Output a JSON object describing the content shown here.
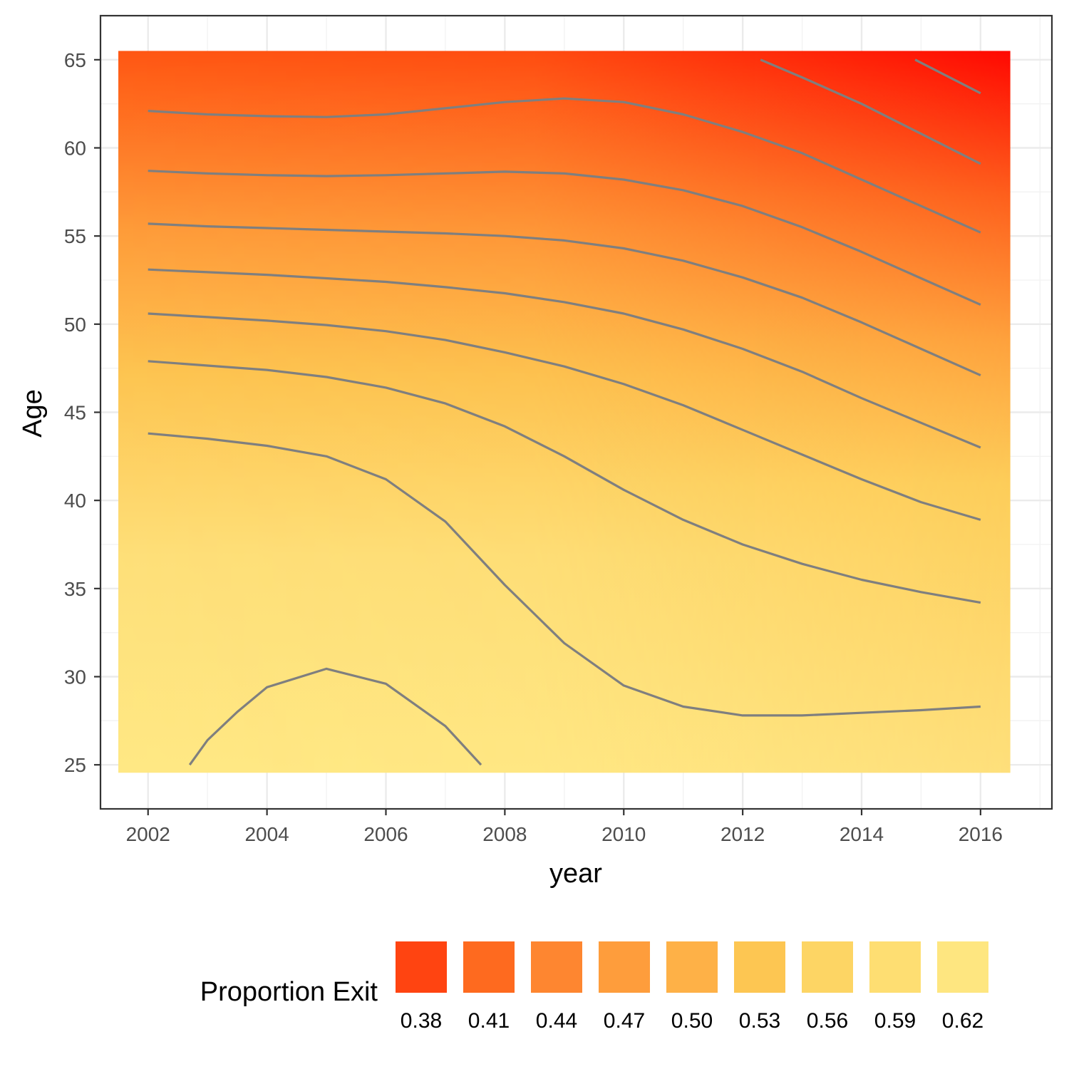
{
  "chart_data": {
    "type": "heatmap",
    "title": "",
    "xlabel": "year",
    "ylabel": "Age",
    "xlim": [
      2001.2,
      2017.2
    ],
    "ylim": [
      22.5,
      67.5
    ],
    "x_ticks": [
      2002,
      2004,
      2006,
      2008,
      2010,
      2012,
      2014,
      2016
    ],
    "y_ticks": [
      25,
      30,
      35,
      40,
      45,
      50,
      55,
      60,
      65
    ],
    "x_tick_labels": [
      "2002",
      "2004",
      "2006",
      "2008",
      "2010",
      "2012",
      "2014",
      "2016"
    ],
    "y_tick_labels": [
      "25",
      "30",
      "35",
      "40",
      "45",
      "50",
      "55",
      "60",
      "65"
    ],
    "grid": true,
    "heatmap_extent": {
      "x": [
        2001.5,
        2016.5
      ],
      "y": [
        24.55,
        65.5
      ]
    },
    "color_scale": {
      "low_color": "#FFE985",
      "high_color": "#FF0000"
    },
    "corner_values": {
      "top_left": 0.4,
      "top_right": 0.36,
      "bottom_left": 0.61,
      "bottom_right": 0.58
    },
    "legend": {
      "title": "Proportion Exit",
      "position": "bottom",
      "entries": [
        {
          "label": "0.38",
          "color": "#FF4411"
        },
        {
          "label": "0.41",
          "color": "#FE6A1F"
        },
        {
          "label": "0.44",
          "color": "#FE8630"
        },
        {
          "label": "0.47",
          "color": "#FE9D3C"
        },
        {
          "label": "0.50",
          "color": "#FEB147"
        },
        {
          "label": "0.53",
          "color": "#FDC652"
        },
        {
          "label": "0.56",
          "color": "#FDD564"
        },
        {
          "label": "0.59",
          "color": "#FEDE72"
        },
        {
          "label": "0.62",
          "color": "#FEE680"
        }
      ]
    },
    "contour_color": "#7f7f7f",
    "contours": [
      {
        "x": [
          2002.7,
          2003.0,
          2003.5,
          2004.0,
          2005.0,
          2006.0,
          2007.0,
          2007.6
        ],
        "y": [
          25.0,
          26.4,
          28.0,
          29.4,
          30.45,
          29.6,
          27.2,
          25.0
        ]
      },
      {
        "x": [
          2002,
          2003,
          2004,
          2005,
          2006,
          2007,
          2008,
          2009,
          2010,
          2011,
          2012,
          2013,
          2014,
          2015,
          2016
        ],
        "y": [
          43.8,
          43.5,
          43.1,
          42.5,
          41.2,
          38.8,
          35.2,
          31.9,
          29.5,
          28.3,
          27.8,
          27.8,
          27.95,
          28.1,
          28.3
        ]
      },
      {
        "x": [
          2002,
          2003,
          2004,
          2005,
          2006,
          2007,
          2008,
          2009,
          2010,
          2011,
          2012,
          2013,
          2014,
          2015,
          2016
        ],
        "y": [
          47.9,
          47.65,
          47.4,
          47.0,
          46.4,
          45.5,
          44.2,
          42.5,
          40.6,
          38.9,
          37.5,
          36.4,
          35.5,
          34.8,
          34.2
        ]
      },
      {
        "x": [
          2002,
          2003,
          2004,
          2005,
          2006,
          2007,
          2008,
          2009,
          2010,
          2011,
          2012,
          2013,
          2014,
          2015,
          2016
        ],
        "y": [
          50.6,
          50.4,
          50.2,
          49.95,
          49.6,
          49.1,
          48.4,
          47.6,
          46.6,
          45.4,
          44.0,
          42.6,
          41.2,
          39.9,
          38.9
        ]
      },
      {
        "x": [
          2002,
          2003,
          2004,
          2005,
          2006,
          2007,
          2008,
          2009,
          2010,
          2011,
          2012,
          2013,
          2014,
          2015,
          2016
        ],
        "y": [
          53.1,
          52.95,
          52.8,
          52.6,
          52.4,
          52.1,
          51.75,
          51.25,
          50.6,
          49.7,
          48.6,
          47.3,
          45.8,
          44.4,
          43.0
        ]
      },
      {
        "x": [
          2002,
          2003,
          2004,
          2005,
          2006,
          2007,
          2008,
          2009,
          2010,
          2011,
          2012,
          2013,
          2014,
          2015,
          2016
        ],
        "y": [
          55.7,
          55.55,
          55.45,
          55.35,
          55.25,
          55.15,
          55.0,
          54.75,
          54.3,
          53.6,
          52.65,
          51.5,
          50.1,
          48.6,
          47.1
        ]
      },
      {
        "x": [
          2002,
          2003,
          2004,
          2005,
          2006,
          2007,
          2008,
          2009,
          2010,
          2011,
          2012,
          2013,
          2014,
          2015,
          2016
        ],
        "y": [
          58.7,
          58.55,
          58.45,
          58.4,
          58.45,
          58.55,
          58.65,
          58.55,
          58.2,
          57.6,
          56.7,
          55.5,
          54.1,
          52.6,
          51.1
        ]
      },
      {
        "x": [
          2002,
          2003,
          2004,
          2005,
          2006,
          2007,
          2008,
          2009,
          2010,
          2011,
          2012,
          2013,
          2014,
          2015,
          2016
        ],
        "y": [
          62.1,
          61.9,
          61.8,
          61.75,
          61.9,
          62.25,
          62.6,
          62.8,
          62.6,
          61.9,
          60.9,
          59.7,
          58.2,
          56.7,
          55.2
        ]
      },
      {
        "x": [
          2012.3,
          2013.0,
          2014.0,
          2015.0,
          2016.0
        ],
        "y": [
          65.0,
          64.0,
          62.5,
          60.8,
          59.1
        ]
      },
      {
        "x": [
          2014.9,
          2016.0
        ],
        "y": [
          65.0,
          63.1
        ]
      }
    ]
  }
}
